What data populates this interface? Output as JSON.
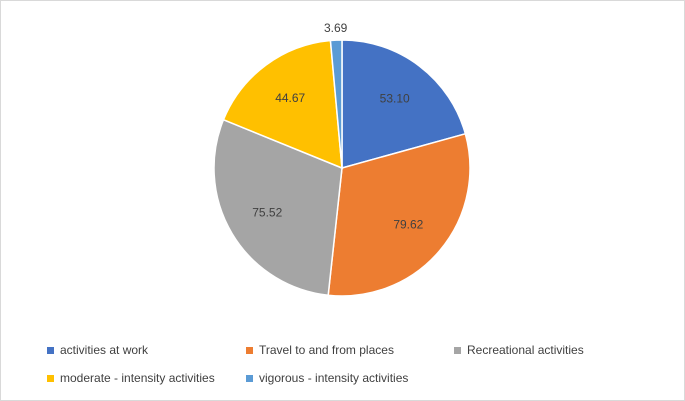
{
  "chart_data": {
    "type": "pie",
    "categories": [
      "activities at work",
      "Travel to and from places",
      "Recreational activities",
      "moderate - intensity activities",
      "vigorous - intensity activities"
    ],
    "values": [
      53.1,
      79.62,
      75.52,
      44.67,
      3.69
    ],
    "value_labels": [
      "53.10",
      "79.62",
      "75.52",
      "44.67",
      "3.69"
    ],
    "colors": [
      "#4472C4",
      "#ED7D31",
      "#A5A5A5",
      "#FFC000",
      "#5B9BD5"
    ],
    "start_angle_deg": 0,
    "direction": "clockwise",
    "legend_position": "bottom"
  }
}
